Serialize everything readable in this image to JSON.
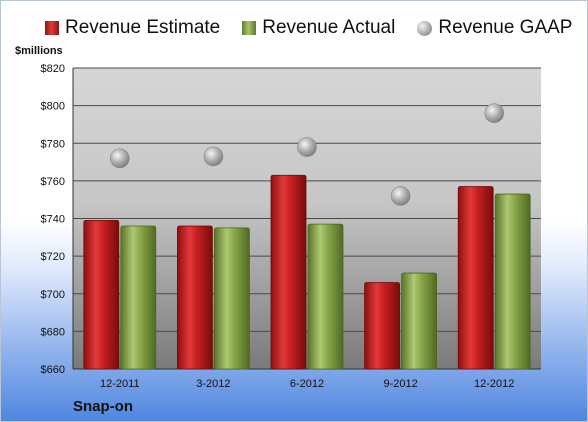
{
  "chart_data": {
    "type": "bar",
    "categories": [
      "12-2011",
      "3-2012",
      "6-2012",
      "9-2012",
      "12-2012"
    ],
    "series": [
      {
        "name": "Revenue Estimate",
        "type": "bar",
        "color": "#c8202a",
        "values": [
          739,
          736,
          763,
          706,
          757
        ]
      },
      {
        "name": "Revenue Actual",
        "type": "bar",
        "color": "#8aa94b",
        "values": [
          736,
          735,
          737,
          711,
          753
        ]
      },
      {
        "name": "Revenue GAAP",
        "type": "scatter",
        "color": "#b4b4b4",
        "values": [
          772,
          773,
          778,
          752,
          796
        ]
      }
    ],
    "ylabel": "$millions",
    "ylim": [
      660,
      820
    ],
    "yticks": [
      660,
      680,
      700,
      720,
      740,
      760,
      780,
      800,
      820
    ],
    "ytick_labels": [
      "$660",
      "$680",
      "$700",
      "$720",
      "$740",
      "$760",
      "$780",
      "$800",
      "$820"
    ],
    "grid": true,
    "legend_position": "top"
  },
  "company": "Snap-on"
}
